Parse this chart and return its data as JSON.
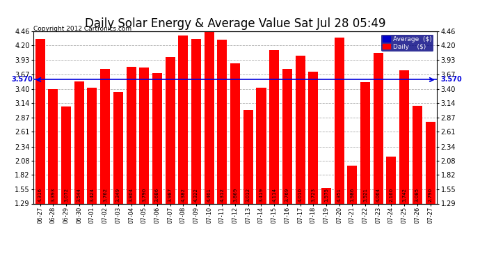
{
  "title": "Daily Solar Energy & Average Value Sat Jul 28 05:49",
  "copyright": "Copyright 2012 Cartronics.com",
  "categories": [
    "06-27",
    "06-28",
    "06-29",
    "06-30",
    "07-01",
    "07-02",
    "07-03",
    "07-04",
    "07-05",
    "07-06",
    "07-07",
    "07-08",
    "07-09",
    "07-10",
    "07-11",
    "07-12",
    "07-13",
    "07-14",
    "07-15",
    "07-16",
    "07-17",
    "07-18",
    "07-19",
    "07-20",
    "07-21",
    "07-22",
    "07-23",
    "07-24",
    "07-25",
    "07-26",
    "07-27"
  ],
  "values": [
    4.316,
    3.393,
    3.072,
    3.544,
    3.424,
    3.762,
    3.349,
    3.804,
    3.79,
    3.686,
    3.987,
    4.382,
    4.322,
    4.461,
    4.312,
    3.869,
    3.012,
    3.419,
    4.114,
    3.769,
    4.01,
    3.723,
    1.575,
    4.351,
    1.986,
    3.521,
    4.064,
    2.16,
    3.742,
    3.085,
    2.79
  ],
  "bar_color": "#ff0000",
  "average_line": 3.57,
  "average_label": "3.570",
  "ylim_min": 1.29,
  "ylim_max": 4.46,
  "yticks": [
    1.29,
    1.55,
    1.82,
    2.08,
    2.34,
    2.61,
    2.87,
    3.14,
    3.4,
    3.67,
    3.93,
    4.2,
    4.46
  ],
  "avg_line_color": "#0000dd",
  "background_color": "#ffffff",
  "plot_bg_color": "#ffffff",
  "grid_color": "#aaaaaa",
  "title_fontsize": 12,
  "bar_label_fontsize": 5.0,
  "legend_avg_color": "#0000cc",
  "legend_daily_color": "#ff0000",
  "legend_bg_color": "#000080"
}
